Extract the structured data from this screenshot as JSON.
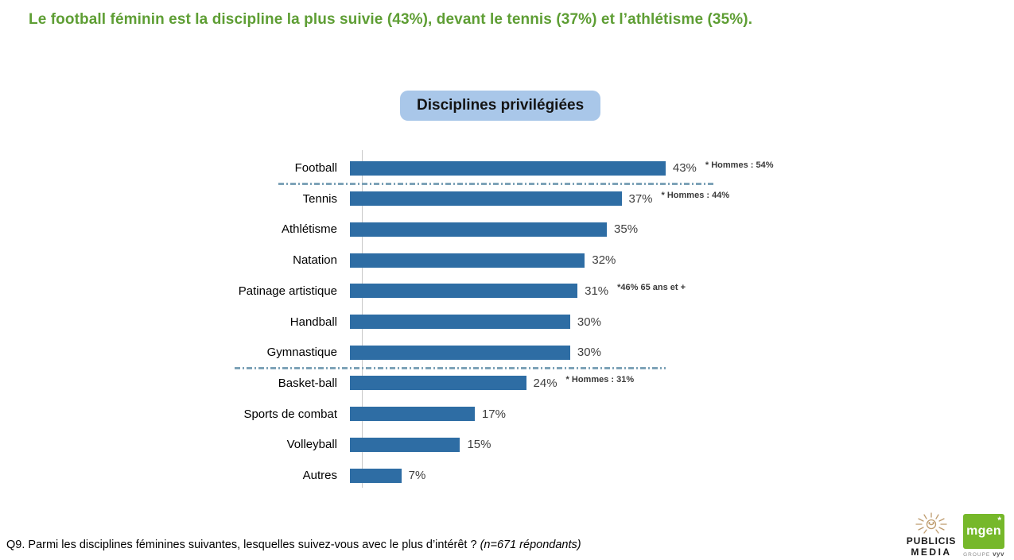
{
  "slide": {
    "headline": "Le football féminin est la discipline la plus suivie (43%), devant le tennis (37%) et l’athlétisme (35%).",
    "badge": "Disciplines privilégiées",
    "footer": {
      "question": "Q9. Parmi les disciplines féminines suivantes, lesquelles suivez-vous avec le plus d’intérêt ? ",
      "sample": "(n=671 répondants)"
    },
    "logos": {
      "publicis_line1": "PUBLICIS",
      "publicis_line2": "MEDIA",
      "mgen": "mgen",
      "mgen_star": "*",
      "groupe": "GROUPE ",
      "vyv": "vyv"
    },
    "colors": {
      "headline_green": "#5E9E34",
      "badge_bg": "#A9C7E9",
      "bar_blue": "#2E6DA4",
      "separator_blue": "#7EA3B8",
      "mgen_green": "#76B82A",
      "publicis_gold": "#BE9C6E"
    }
  },
  "chart_data": {
    "type": "bar",
    "orientation": "horizontal",
    "title": "Disciplines privilégiées",
    "unit": "%",
    "categories": [
      "Football",
      "Tennis",
      "Athlétisme",
      "Natation",
      "Patinage artistique",
      "Handball",
      "Gymnastique",
      "Basket-ball",
      "Sports de combat",
      "Volleyball",
      "Autres"
    ],
    "values": [
      43,
      37,
      35,
      32,
      31,
      30,
      30,
      24,
      17,
      15,
      7
    ],
    "value_labels": [
      "43%",
      "37%",
      "35%",
      "32%",
      "31%",
      "30%",
      "30%",
      "24%",
      "17%",
      "15%",
      "7%"
    ],
    "annotations": [
      {
        "index": 0,
        "text": "* Hommes : 54%"
      },
      {
        "index": 1,
        "text": "* Hommes : 44%"
      },
      {
        "index": 4,
        "text": "*46% 65 ans et +"
      },
      {
        "index": 7,
        "text": "* Hommes : 31%"
      }
    ],
    "separators_after_index": [
      0,
      6
    ],
    "xlim": [
      0,
      46
    ],
    "bar_color": "#2E6DA4",
    "legend": "none",
    "grid": "off",
    "x_axis_labels": "none"
  }
}
